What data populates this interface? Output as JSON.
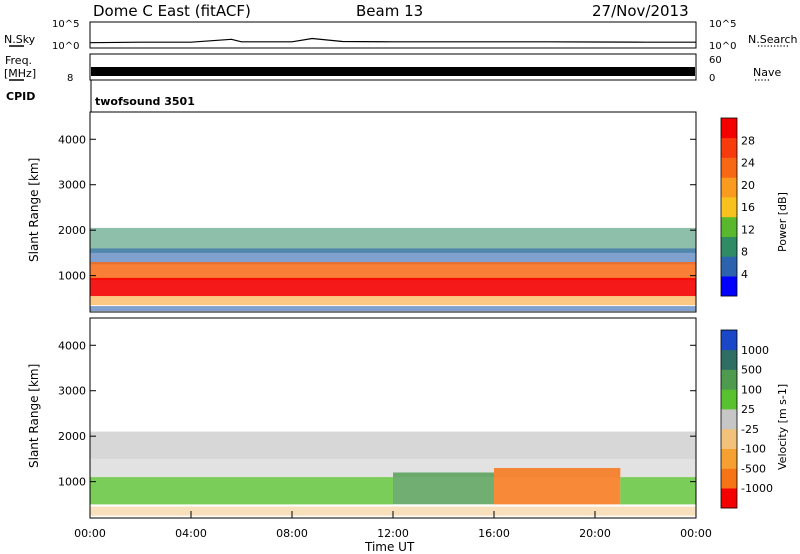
{
  "header": {
    "station": "Dome C East (fitACF)",
    "beam": "Beam 13",
    "date": "27/Nov/2013"
  },
  "side_labels": {
    "nsky": "N.Sky",
    "freq": "Freq.",
    "freq_unit": "[MHz]",
    "cpid": "CPID",
    "nsearch": "N.Search",
    "nave": "Nave"
  },
  "cpid_text": "twofsound 3501",
  "chart_data": [
    {
      "type": "line",
      "name": "nsky-nsearch",
      "yticks_left": [
        "10^5",
        "10^0"
      ],
      "yticks_right": [
        "10^5",
        "10^0"
      ],
      "series": [
        {
          "name": "N.Sky",
          "x": [
            0,
            2,
            4,
            5.6,
            6,
            8,
            8.8,
            10,
            12,
            14,
            16,
            18,
            20,
            22,
            24
          ],
          "values": [
            8,
            10,
            10,
            40,
            12,
            12,
            60,
            14,
            12,
            12,
            12,
            12,
            11,
            10,
            10
          ]
        }
      ]
    },
    {
      "type": "line",
      "name": "freq-nave",
      "yticks_left": [
        "8"
      ],
      "yticks_right": [
        "60",
        "0"
      ],
      "series": [
        {
          "name": "Freq.",
          "x": [
            0,
            24
          ],
          "values": [
            10.5,
            10.5
          ]
        }
      ]
    },
    {
      "type": "heatmap",
      "name": "power",
      "ylabel": "Slant Range [km]",
      "ylim": [
        200,
        4600
      ],
      "yticks": [
        1000,
        2000,
        3000,
        4000
      ],
      "colorbar_label": "Power [dB]",
      "colorbar_ticks": [
        "4",
        "8",
        "12",
        "16",
        "20",
        "24",
        "28"
      ],
      "colors": [
        "#0000ff",
        "#2c62ae",
        "#2f8a66",
        "#5ab82e",
        "#f7c21e",
        "#f99b1e",
        "#f86814",
        "#f73b0c",
        "#f50000"
      ]
    },
    {
      "type": "heatmap",
      "name": "velocity",
      "ylabel": "Slant Range [km]",
      "xlabel": "Time UT",
      "ylim": [
        200,
        4600
      ],
      "yticks": [
        1000,
        2000,
        3000,
        4000
      ],
      "xticks": [
        "00:00",
        "04:00",
        "08:00",
        "12:00",
        "16:00",
        "20:00",
        "00:00"
      ],
      "colorbar_label": "Velocity [m s-1]",
      "colorbar_ticks": [
        "1000",
        "500",
        "100",
        "25",
        "-25",
        "-100",
        "-500",
        "-1000"
      ],
      "colors": [
        "#1a46c8",
        "#2f6e63",
        "#4e9a4f",
        "#59c030",
        "#c6c6c6",
        "#f2c27a",
        "#f5a030",
        "#f67415",
        "#f50000"
      ]
    }
  ]
}
